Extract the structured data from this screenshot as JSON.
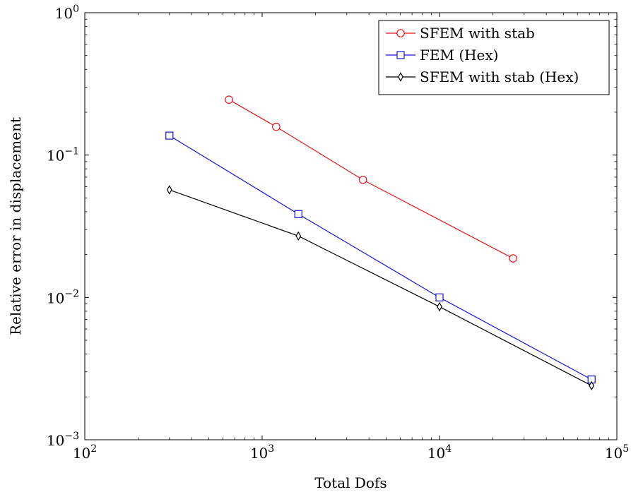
{
  "chart_data": {
    "type": "line",
    "title": "",
    "xlabel": "Total Dofs",
    "ylabel": "Relative error in displacement",
    "xscale": "log",
    "yscale": "log",
    "xlim": [
      100,
      100000
    ],
    "ylim": [
      0.001,
      1
    ],
    "grid": false,
    "legend_position": "top-right",
    "x_ticks": [
      {
        "value": 100,
        "base": "10",
        "exp": "2"
      },
      {
        "value": 1000,
        "base": "10",
        "exp": "3"
      },
      {
        "value": 10000,
        "base": "10",
        "exp": "4"
      },
      {
        "value": 100000,
        "base": "10",
        "exp": "5"
      }
    ],
    "y_ticks": [
      {
        "value": 0.001,
        "base": "10",
        "exp": "−3"
      },
      {
        "value": 0.01,
        "base": "10",
        "exp": "−2"
      },
      {
        "value": 0.1,
        "base": "10",
        "exp": "−1"
      },
      {
        "value": 1,
        "base": "10",
        "exp": "0"
      }
    ],
    "series": [
      {
        "name": "SFEM with stab",
        "color": "#e8141b",
        "marker": "circle",
        "x": [
          650,
          1200,
          3700,
          26000
        ],
        "y": [
          0.245,
          0.158,
          0.067,
          0.0188
        ]
      },
      {
        "name": "FEM (Hex)",
        "color": "#1414dc",
        "marker": "square",
        "x": [
          300,
          1600,
          10000,
          72000
        ],
        "y": [
          0.137,
          0.0385,
          0.01,
          0.00265
        ]
      },
      {
        "name": "SFEM with stab (Hex)",
        "color": "#000000",
        "marker": "diamond",
        "x": [
          300,
          1600,
          10000,
          72000
        ],
        "y": [
          0.057,
          0.027,
          0.0086,
          0.0024
        ]
      }
    ]
  }
}
